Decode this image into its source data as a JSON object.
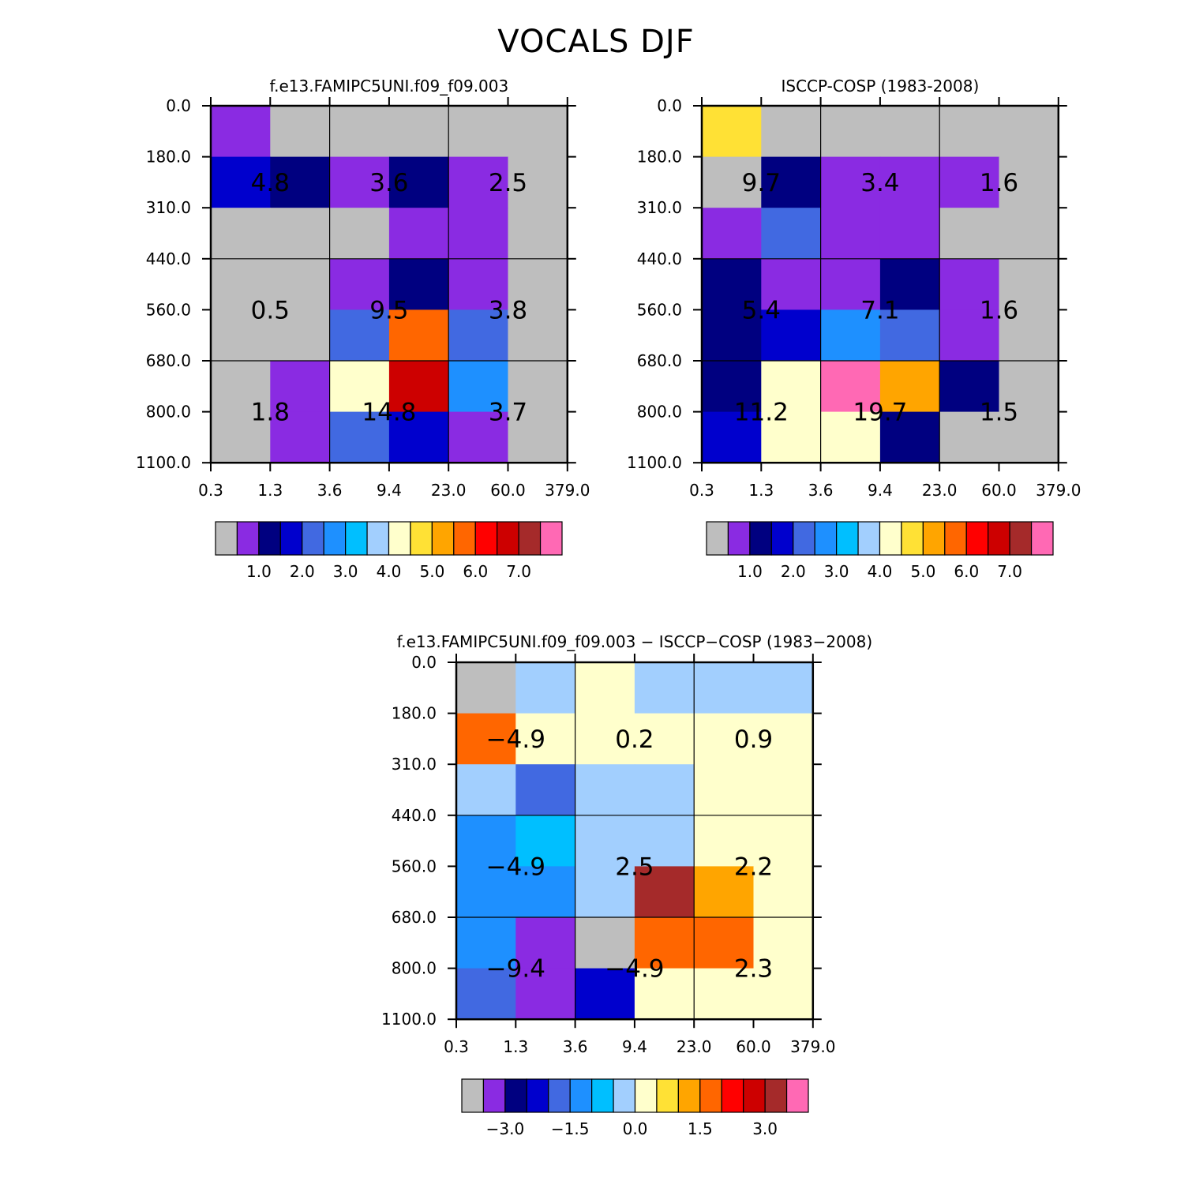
{
  "title": "VOCALS DJF",
  "chart_data": [
    {
      "type": "heatmap",
      "title": "f.e13.FAMIPC5UNI.f09_f09.003",
      "x_ticks": [
        "0.3",
        "1.3",
        "3.6",
        "9.4",
        "23.0",
        "60.0",
        "379.0"
      ],
      "y_ticks": [
        "0.0",
        "180.0",
        "310.0",
        "440.0",
        "560.0",
        "680.0",
        "800.0",
        "1100.0"
      ],
      "cells": [
        [
          "purple",
          "gray",
          "gray",
          "gray",
          "gray",
          "gray"
        ],
        [
          "blue",
          "navy",
          "purple",
          "navy",
          "purple",
          "gray"
        ],
        [
          "gray",
          "gray",
          "gray",
          "purple",
          "purple",
          "gray"
        ],
        [
          "gray",
          "gray",
          "purple",
          "navy",
          "purple",
          "gray"
        ],
        [
          "gray",
          "gray",
          "royalblue",
          "darkorange",
          "royalblue",
          "gray"
        ],
        [
          "gray",
          "purple",
          "lightyellow",
          "red3",
          "dodgerblue",
          "gray"
        ],
        [
          "gray",
          "purple",
          "royalblue",
          "blue",
          "purple",
          "gray"
        ]
      ],
      "region_values": [
        "4.8",
        "3.6",
        "2.5",
        "0.5",
        "9.5",
        "3.8",
        "1.8",
        "14.8",
        "3.7"
      ],
      "colorbar_labels": [
        "1.0",
        "2.0",
        "3.0",
        "4.0",
        "5.0",
        "6.0",
        "7.0"
      ],
      "colorbar_colors": [
        "gray",
        "purple",
        "navy",
        "blue",
        "royalblue",
        "dodgerblue",
        "deepskyblue",
        "lightblue",
        "lightyellow",
        "gold",
        "orange",
        "darkorange",
        "red",
        "red3",
        "brown",
        "pink"
      ]
    },
    {
      "type": "heatmap",
      "title": "ISCCP-COSP (1983-2008)",
      "x_ticks": [
        "0.3",
        "1.3",
        "3.6",
        "9.4",
        "23.0",
        "60.0",
        "379.0"
      ],
      "y_ticks": [
        "0.0",
        "180.0",
        "310.0",
        "440.0",
        "560.0",
        "680.0",
        "800.0",
        "1100.0"
      ],
      "cells": [
        [
          "gold",
          "gray",
          "gray",
          "gray",
          "gray",
          "gray"
        ],
        [
          "gray",
          "navy",
          "purple",
          "purple",
          "purple",
          "gray"
        ],
        [
          "purple",
          "royalblue",
          "purple",
          "purple",
          "gray",
          "gray"
        ],
        [
          "navy",
          "purple",
          "purple",
          "navy",
          "purple",
          "gray"
        ],
        [
          "navy",
          "blue",
          "dodgerblue",
          "royalblue",
          "purple",
          "gray"
        ],
        [
          "navy",
          "lightyellow",
          "pink",
          "orange",
          "navy",
          "gray"
        ],
        [
          "blue",
          "lightyellow",
          "lightyellow",
          "navy",
          "gray",
          "gray"
        ]
      ],
      "region_values": [
        "9.7",
        "3.4",
        "1.6",
        "5.4",
        "7.1",
        "1.6",
        "11.2",
        "19.7",
        "1.5"
      ],
      "colorbar_labels": [
        "1.0",
        "2.0",
        "3.0",
        "4.0",
        "5.0",
        "6.0",
        "7.0"
      ],
      "colorbar_colors": [
        "gray",
        "purple",
        "navy",
        "blue",
        "royalblue",
        "dodgerblue",
        "deepskyblue",
        "lightblue",
        "lightyellow",
        "gold",
        "orange",
        "darkorange",
        "red",
        "red3",
        "brown",
        "pink"
      ]
    },
    {
      "type": "heatmap",
      "title": "f.e13.FAMIPC5UNI.f09_f09.003 − ISCCP−COSP (1983−2008)",
      "x_ticks": [
        "0.3",
        "1.3",
        "3.6",
        "9.4",
        "23.0",
        "60.0",
        "379.0"
      ],
      "y_ticks": [
        "0.0",
        "180.0",
        "310.0",
        "440.0",
        "560.0",
        "680.0",
        "800.0",
        "1100.0"
      ],
      "cells": [
        [
          "gray",
          "lightblue",
          "lightyellow",
          "lightblue",
          "lightblue",
          "lightblue"
        ],
        [
          "darkorange",
          "lightyellow",
          "lightyellow",
          "lightyellow",
          "lightyellow",
          "lightyellow"
        ],
        [
          "lightblue",
          "royalblue",
          "lightblue",
          "lightblue",
          "lightyellow",
          "lightyellow"
        ],
        [
          "dodgerblue",
          "deepskyblue",
          "lightblue",
          "lightblue",
          "lightyellow",
          "lightyellow"
        ],
        [
          "dodgerblue",
          "dodgerblue",
          "lightblue",
          "brown",
          "orange",
          "lightyellow"
        ],
        [
          "dodgerblue",
          "purple",
          "gray",
          "darkorange",
          "darkorange",
          "lightyellow"
        ],
        [
          "royalblue",
          "purple",
          "blue",
          "lightyellow",
          "lightyellow",
          "lightyellow"
        ]
      ],
      "region_values": [
        "−4.9",
        "0.2",
        "0.9",
        "−4.9",
        "2.5",
        "2.2",
        "−9.4",
        "−4.9",
        "2.3"
      ],
      "colorbar_labels": [
        "−3.0",
        "−1.5",
        "0.0",
        "1.5",
        "3.0"
      ],
      "colorbar_colors": [
        "gray",
        "purple",
        "navy",
        "blue",
        "royalblue",
        "dodgerblue",
        "deepskyblue",
        "lightblue",
        "lightyellow",
        "gold",
        "orange",
        "darkorange",
        "red",
        "red3",
        "brown",
        "pink"
      ]
    }
  ],
  "palette": {
    "gray": "#bebebe",
    "purple": "#8a2be2",
    "navy": "#000080",
    "blue": "#0000cd",
    "royalblue": "#4169e1",
    "dodgerblue": "#1e90ff",
    "deepskyblue": "#00bfff",
    "lightblue": "#a2cffe",
    "lightyellow": "#ffffcc",
    "gold": "#ffe135",
    "orange": "#ffa500",
    "darkorange": "#ff6600",
    "red": "#ff0000",
    "red3": "#cd0000",
    "brown": "#a52a2a",
    "pink": "#ff69b4"
  }
}
